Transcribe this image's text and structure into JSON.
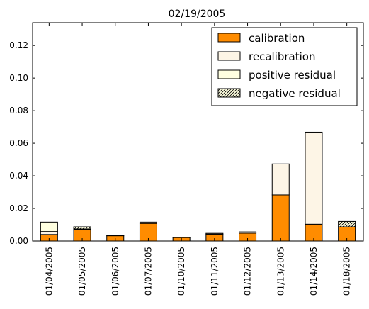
{
  "chart_data": {
    "type": "bar",
    "stacked": true,
    "title": "02/19/2005",
    "xlabel": "",
    "ylabel": "",
    "ylim": [
      0,
      0.134
    ],
    "yticks": [
      "0.00",
      "0.02",
      "0.04",
      "0.06",
      "0.08",
      "0.10",
      "0.12"
    ],
    "grid": false,
    "legend_position": "top-right",
    "categories": [
      "01/04/2005",
      "01/05/2005",
      "01/06/2005",
      "01/07/2005",
      "01/10/2005",
      "01/11/2005",
      "01/12/2005",
      "01/13/2005",
      "01/14/2005",
      "01/18/2005"
    ],
    "series": [
      {
        "name": "calibration",
        "color": "#ff8c00",
        "values": [
          0.004,
          0.0072,
          0.0033,
          0.0108,
          0.0022,
          0.0042,
          0.0048,
          0.0283,
          0.0103,
          0.0087
        ]
      },
      {
        "name": "recalibration",
        "color": "#fdf5e6",
        "values": [
          0.0018,
          0.0002,
          0.0001,
          0.0008,
          0.0001,
          0.0005,
          0.0008,
          0.019,
          0.0565,
          0.0
        ]
      },
      {
        "name": "positive residual",
        "color": "#ffffe0",
        "values": [
          0.0058,
          0.0,
          0.0,
          0.0,
          0.0,
          0.0,
          0.0,
          0.0,
          0.0,
          0.0
        ]
      },
      {
        "name": "negative residual",
        "color": "#ffffe0",
        "hatch": true,
        "values": [
          0.0,
          0.0013,
          0.0,
          0.0,
          0.0,
          0.0,
          0.0,
          0.0,
          0.0,
          0.0033
        ]
      }
    ]
  }
}
